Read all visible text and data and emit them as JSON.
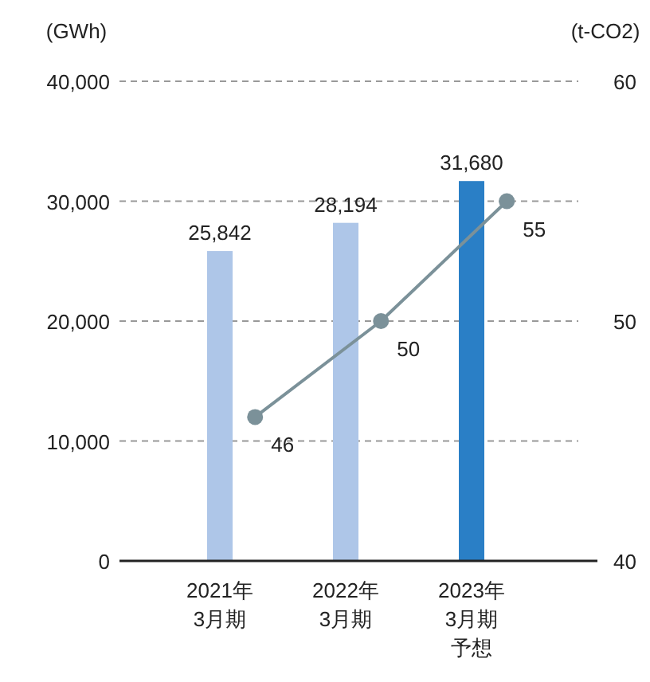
{
  "chart_data": {
    "type": "bar",
    "ylabel": "(GWh)",
    "y2label": "(t-CO2)",
    "categories": [
      "2021年3月期",
      "2022年3月期",
      "2023年3月期予想"
    ],
    "series": [
      {
        "colors": [
          "#aec6e8",
          "#aec6e8",
          "#2a7fc6"
        ],
        "values": [
          25842,
          28194,
          31680
        ],
        "value_labels": [
          "25,842",
          "28,194",
          "31,680"
        ]
      },
      {
        "type": "line",
        "axis": "y2",
        "color": "#7b9199",
        "values": [
          46,
          50,
          55
        ]
      }
    ],
    "ylim": [
      0,
      40000
    ],
    "yticks": [
      {
        "value": 0,
        "label": "0"
      },
      {
        "value": 10000,
        "label": "10,000"
      },
      {
        "value": 20000,
        "label": "20,000"
      },
      {
        "value": 30000,
        "label": "30,000"
      },
      {
        "value": 40000,
        "label": "40,000"
      }
    ],
    "y2lim": [
      40,
      60
    ],
    "y2ticks": [
      40,
      50,
      60
    ],
    "grid": "y",
    "marker": "circle",
    "data_labels": true
  }
}
